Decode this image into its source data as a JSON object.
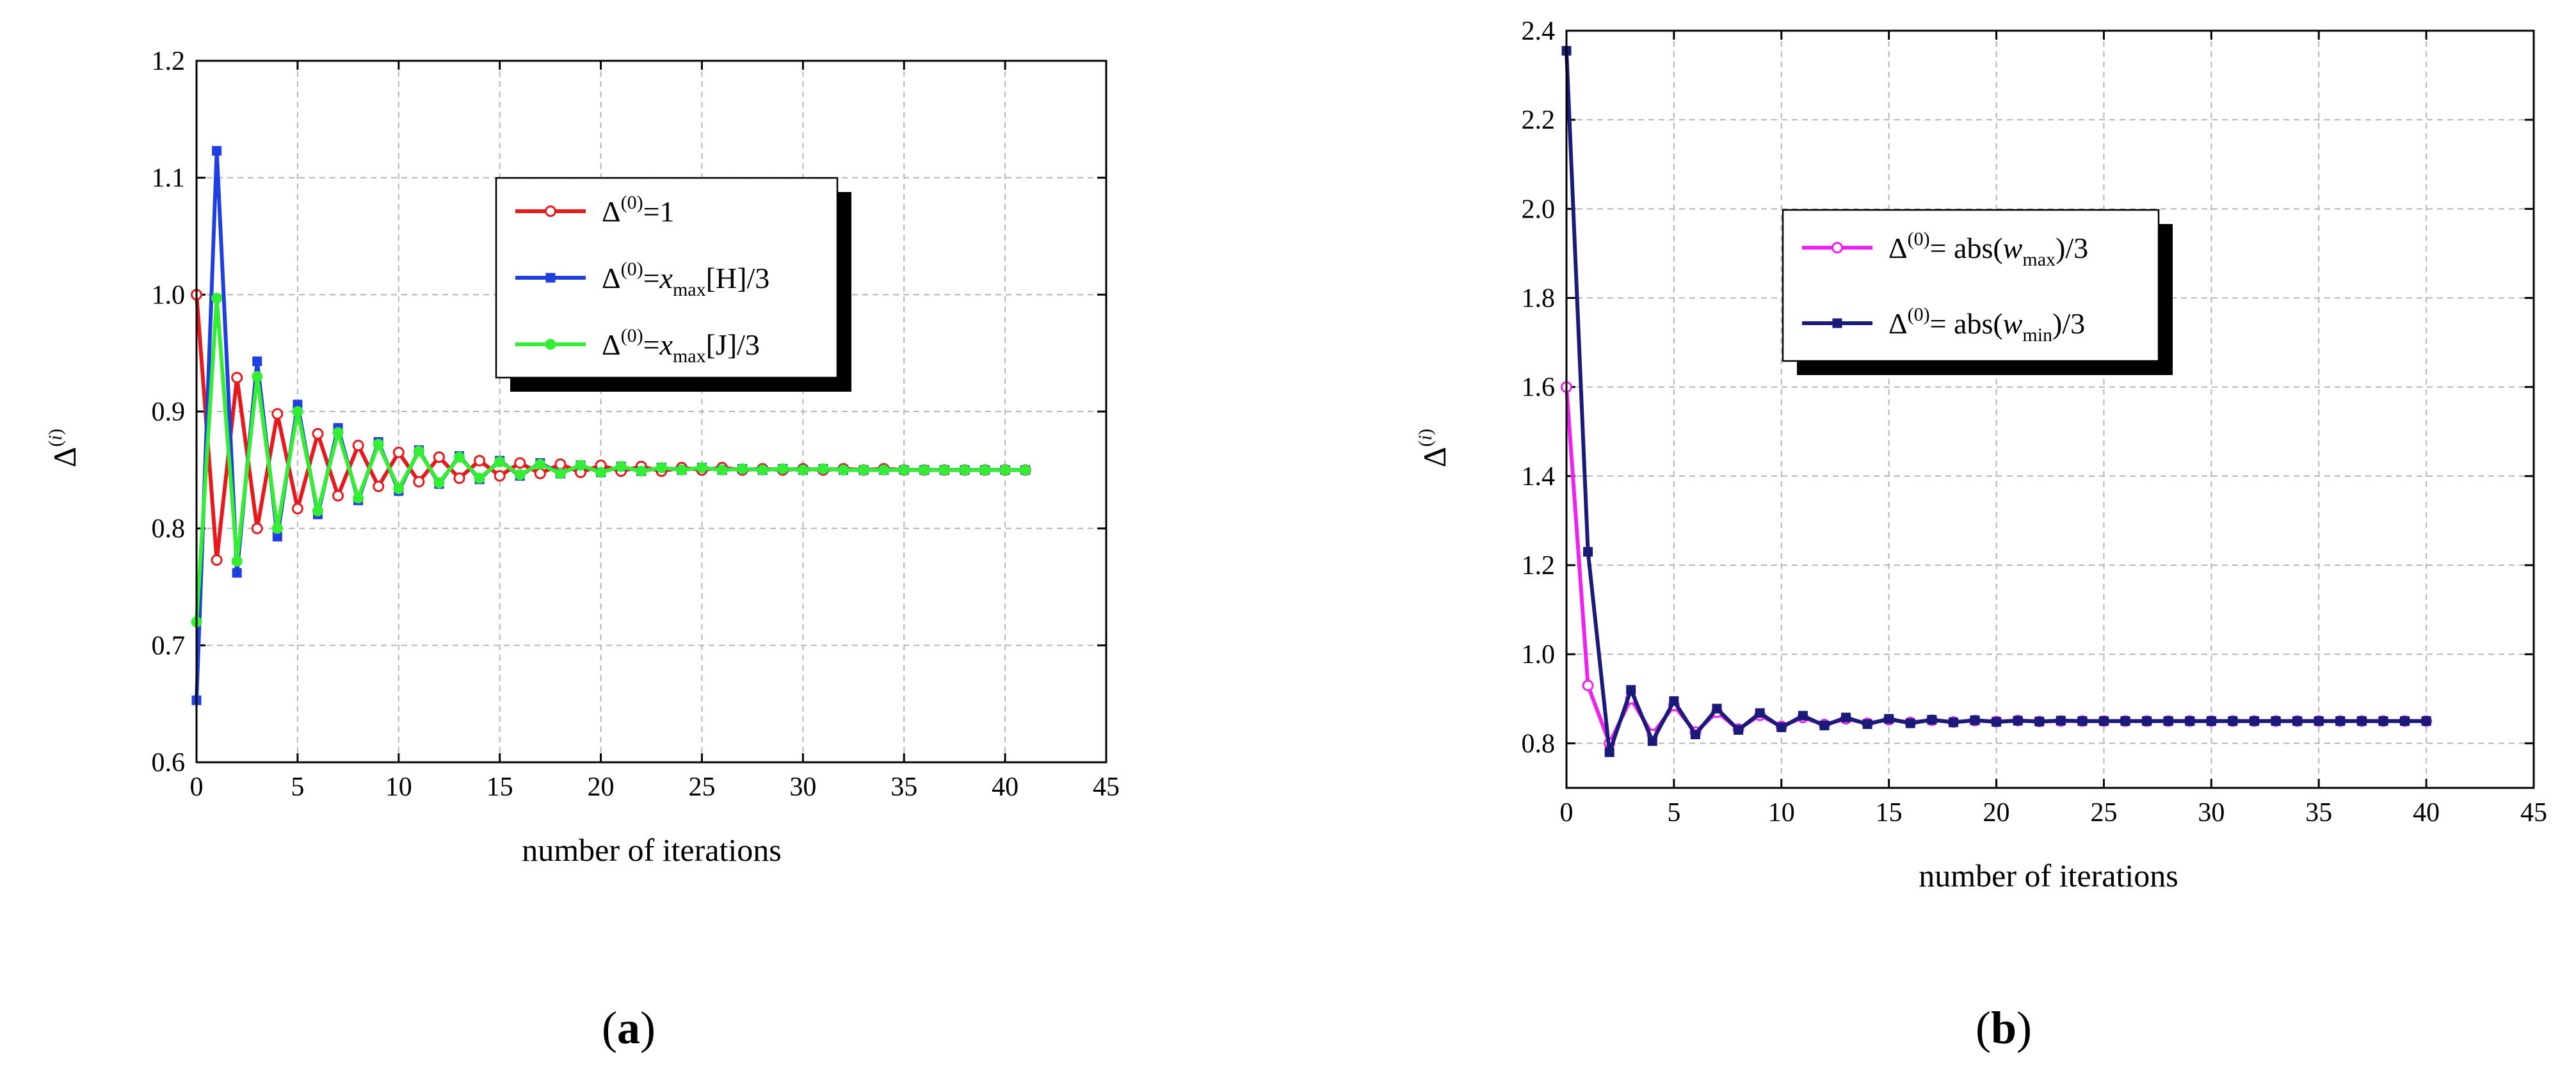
{
  "chart_data": [
    {
      "type": "line",
      "panel_label": "(a)",
      "xlabel": "number of iterations",
      "ylabel": "Δ(i)",
      "xlim": [
        0,
        45
      ],
      "ylim": [
        0.6,
        1.2
      ],
      "xticks": [
        "0",
        "5",
        "10",
        "15",
        "20",
        "25",
        "30",
        "35",
        "40",
        "45"
      ],
      "yticks": [
        "0.6",
        "0.7",
        "0.8",
        "0.9",
        "1.0",
        "1.1",
        "1.2"
      ],
      "grid": true,
      "legend_position": "upper-center",
      "series": [
        {
          "name": "Δ(0)=1",
          "legend": {
            "pre": "Δ",
            "sup": "(0)",
            "post": "=1"
          },
          "color": "#e8191c",
          "marker": "open-circle",
          "x": [
            0,
            1,
            2,
            3,
            4,
            5,
            6,
            7,
            8,
            9,
            10,
            11,
            12,
            13,
            14,
            15,
            16,
            17,
            18,
            19,
            20,
            21,
            22,
            23,
            24,
            25,
            26,
            27,
            28,
            29,
            30,
            31,
            32,
            33,
            34,
            35,
            36,
            37,
            38,
            39,
            40,
            41
          ],
          "y": [
            1.0,
            0.773,
            0.929,
            0.8,
            0.898,
            0.817,
            0.881,
            0.828,
            0.871,
            0.836,
            0.865,
            0.84,
            0.861,
            0.843,
            0.858,
            0.845,
            0.856,
            0.847,
            0.855,
            0.848,
            0.854,
            0.849,
            0.853,
            0.849,
            0.852,
            0.85,
            0.852,
            0.85,
            0.851,
            0.85,
            0.851,
            0.85,
            0.851,
            0.85,
            0.851,
            0.85,
            0.85,
            0.85,
            0.85,
            0.85,
            0.85,
            0.85
          ]
        },
        {
          "name": "Δ(0)=xmax[H]/3",
          "legend": {
            "pre": "Δ",
            "sup": "(0)",
            "mid": "=",
            "var": "x",
            "sub": "max",
            "post": "[H]/3"
          },
          "color": "#1f3fe0",
          "marker": "filled-square",
          "x": [
            0,
            1,
            2,
            3,
            4,
            5,
            6,
            7,
            8,
            9,
            10,
            11,
            12,
            13,
            14,
            15,
            16,
            17,
            18,
            19,
            20,
            21,
            22,
            23,
            24,
            25,
            26,
            27,
            28,
            29,
            30,
            31,
            32,
            33,
            34,
            35,
            36,
            37,
            38,
            39,
            40,
            41
          ],
          "y": [
            0.653,
            1.123,
            0.762,
            0.943,
            0.793,
            0.906,
            0.812,
            0.886,
            0.824,
            0.874,
            0.832,
            0.867,
            0.838,
            0.862,
            0.842,
            0.858,
            0.845,
            0.856,
            0.847,
            0.854,
            0.848,
            0.853,
            0.849,
            0.852,
            0.85,
            0.852,
            0.85,
            0.851,
            0.85,
            0.851,
            0.85,
            0.851,
            0.85,
            0.85,
            0.85,
            0.85,
            0.85,
            0.85,
            0.85,
            0.85,
            0.85,
            0.85
          ]
        },
        {
          "name": "Δ(0)=xmax[J]/3",
          "legend": {
            "pre": "Δ",
            "sup": "(0)",
            "mid": "=",
            "var": "x",
            "sub": "max",
            "post": "[J]/3"
          },
          "color": "#33ee33",
          "marker": "filled-circle",
          "x": [
            0,
            1,
            2,
            3,
            4,
            5,
            6,
            7,
            8,
            9,
            10,
            11,
            12,
            13,
            14,
            15,
            16,
            17,
            18,
            19,
            20,
            21,
            22,
            23,
            24,
            25,
            26,
            27,
            28,
            29,
            30,
            31,
            32,
            33,
            34,
            35,
            36,
            37,
            38,
            39,
            40,
            41
          ],
          "y": [
            0.72,
            0.997,
            0.772,
            0.93,
            0.8,
            0.9,
            0.815,
            0.882,
            0.826,
            0.872,
            0.834,
            0.866,
            0.839,
            0.861,
            0.843,
            0.857,
            0.846,
            0.855,
            0.847,
            0.854,
            0.848,
            0.853,
            0.849,
            0.852,
            0.85,
            0.852,
            0.85,
            0.851,
            0.85,
            0.851,
            0.85,
            0.851,
            0.85,
            0.85,
            0.85,
            0.85,
            0.85,
            0.85,
            0.85,
            0.85,
            0.85,
            0.85
          ]
        }
      ]
    },
    {
      "type": "line",
      "panel_label": "(b)",
      "xlabel": "number of iterations",
      "ylabel": "Δ(i)",
      "xlim": [
        0,
        45
      ],
      "ylim": [
        0.7,
        2.4
      ],
      "xticks": [
        "0",
        "5",
        "10",
        "15",
        "20",
        "25",
        "30",
        "35",
        "40",
        "45"
      ],
      "yticks": [
        "0.8",
        "1.0",
        "1.2",
        "1.4",
        "1.6",
        "1.8",
        "2.0",
        "2.2",
        "2.4"
      ],
      "ytick_values": [
        0.8,
        1.0,
        1.2,
        1.4,
        1.6,
        1.8,
        2.0,
        2.2,
        2.4
      ],
      "grid": true,
      "legend_position": "upper-center",
      "series": [
        {
          "name": "Δ(0)= abs(wmax)/3",
          "legend": {
            "pre": "Δ",
            "sup": "(0)",
            "mid": "= abs(",
            "var": "w",
            "sub": "max",
            "post": ")/3"
          },
          "color": "#ee22ee",
          "marker": "open-circle",
          "x": [
            0,
            1,
            2,
            3,
            4,
            5,
            6,
            7,
            8,
            9,
            10,
            11,
            12,
            13,
            14,
            15,
            16,
            17,
            18,
            19,
            20,
            21,
            22,
            23,
            24,
            25,
            26,
            27,
            28,
            29,
            30,
            31,
            32,
            33,
            34,
            35,
            36,
            37,
            38,
            39,
            40
          ],
          "y": [
            1.6,
            0.93,
            0.8,
            0.9,
            0.82,
            0.885,
            0.825,
            0.87,
            0.832,
            0.863,
            0.838,
            0.858,
            0.842,
            0.855,
            0.845,
            0.853,
            0.847,
            0.852,
            0.848,
            0.851,
            0.849,
            0.851,
            0.849,
            0.85,
            0.85,
            0.85,
            0.85,
            0.85,
            0.85,
            0.85,
            0.85,
            0.85,
            0.85,
            0.85,
            0.85,
            0.85,
            0.85,
            0.85,
            0.85,
            0.85,
            0.85
          ]
        },
        {
          "name": "Δ(0)= abs(wmin)/3",
          "legend": {
            "pre": "Δ",
            "sup": "(0)",
            "mid": "= abs(",
            "var": "w",
            "sub": "min",
            "post": ")/3"
          },
          "color": "#1a1a78",
          "marker": "filled-square",
          "x": [
            0,
            1,
            2,
            3,
            4,
            5,
            6,
            7,
            8,
            9,
            10,
            11,
            12,
            13,
            14,
            15,
            16,
            17,
            18,
            19,
            20,
            21,
            22,
            23,
            24,
            25,
            26,
            27,
            28,
            29,
            30,
            31,
            32,
            33,
            34,
            35,
            36,
            37,
            38,
            39,
            40
          ],
          "y": [
            2.355,
            1.23,
            0.78,
            0.92,
            0.805,
            0.895,
            0.82,
            0.878,
            0.83,
            0.868,
            0.836,
            0.862,
            0.84,
            0.858,
            0.843,
            0.855,
            0.845,
            0.853,
            0.847,
            0.852,
            0.848,
            0.851,
            0.849,
            0.851,
            0.85,
            0.85,
            0.85,
            0.85,
            0.85,
            0.85,
            0.85,
            0.85,
            0.85,
            0.85,
            0.85,
            0.85,
            0.85,
            0.85,
            0.85,
            0.85,
            0.85
          ]
        }
      ]
    }
  ]
}
